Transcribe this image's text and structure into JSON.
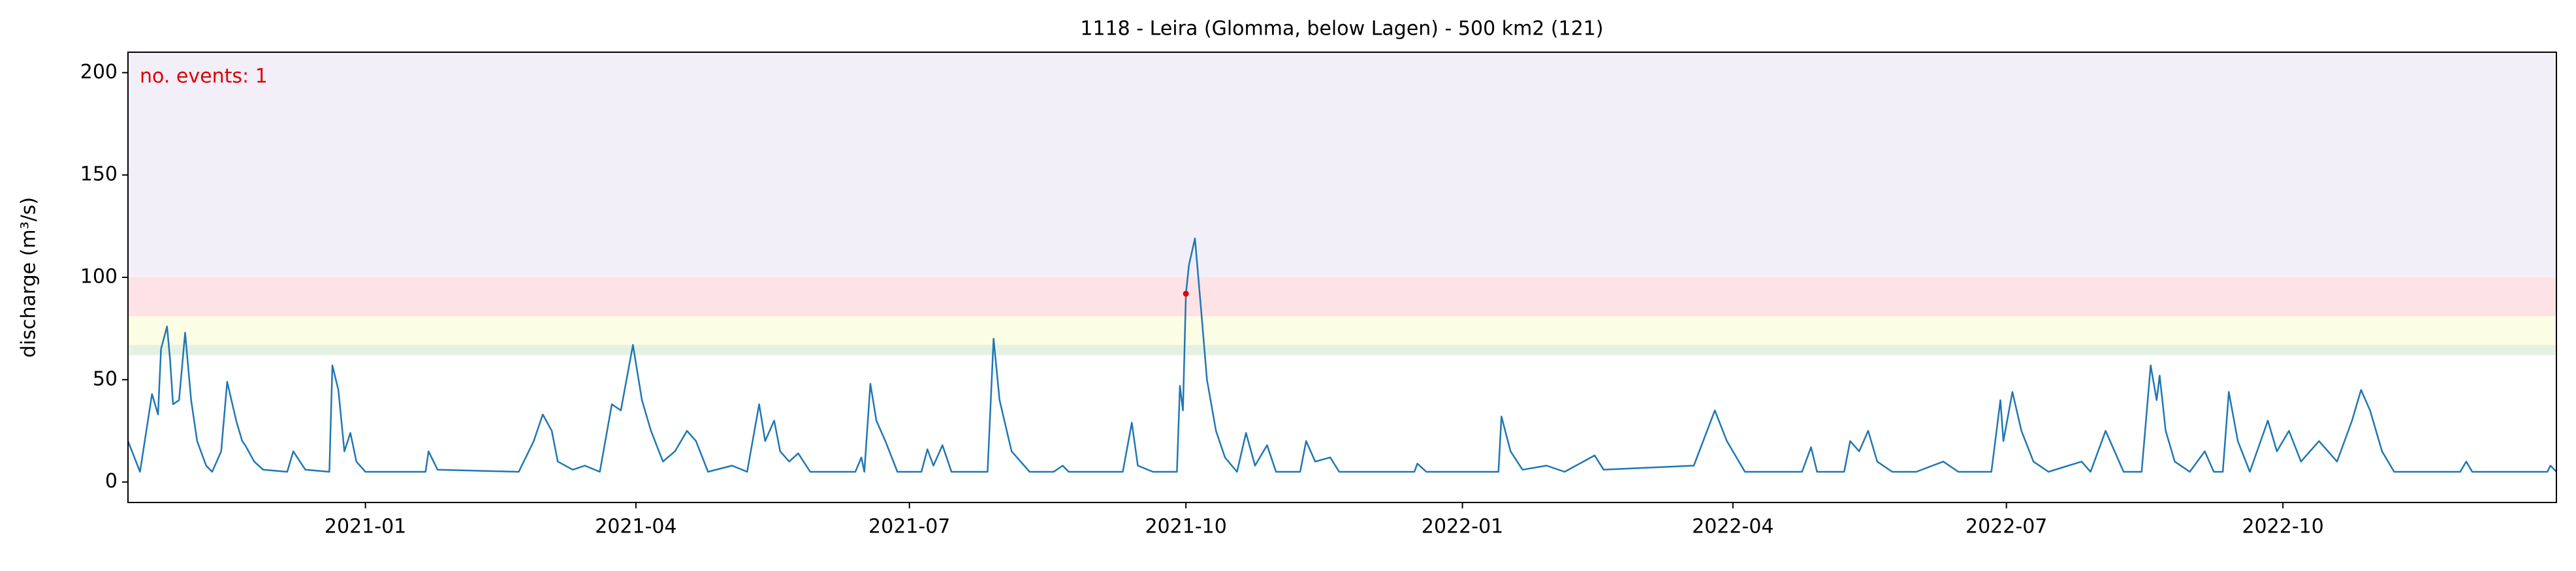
{
  "chart_data": {
    "type": "line",
    "title": "1118 - Leira (Glomma, below Lagen) - 500 km2 (121)",
    "ylabel": "discharge (m³/s)",
    "annotation": "no. events: 1",
    "annotation_color": "#e00000",
    "color": "#1f77b4",
    "x": [
      "2020-10-14",
      "2020-10-18",
      "2020-10-22",
      "2020-10-24",
      "2020-10-25",
      "2020-10-27",
      "2020-10-28",
      "2020-10-29",
      "2020-10-31",
      "2020-11-02",
      "2020-11-04",
      "2020-11-06",
      "2020-11-09",
      "2020-11-11",
      "2020-11-14",
      "2020-11-16",
      "2020-11-19",
      "2020-11-21",
      "2020-11-22",
      "2020-11-25",
      "2020-11-28",
      "2020-12-06",
      "2020-12-08",
      "2020-12-12",
      "2020-12-20",
      "2020-12-21",
      "2020-12-23",
      "2020-12-25",
      "2020-12-27",
      "2020-12-29",
      "2021-01-01",
      "2021-01-21",
      "2021-01-22",
      "2021-01-25",
      "2021-02-21",
      "2021-02-26",
      "2021-03-01",
      "2021-03-04",
      "2021-03-06",
      "2021-03-11",
      "2021-03-15",
      "2021-03-20",
      "2021-03-24",
      "2021-03-27",
      "2021-03-31",
      "2021-04-03",
      "2021-04-06",
      "2021-04-10",
      "2021-04-14",
      "2021-04-18",
      "2021-04-21",
      "2021-04-25",
      "2021-05-03",
      "2021-05-08",
      "2021-05-12",
      "2021-05-14",
      "2021-05-17",
      "2021-05-19",
      "2021-05-22",
      "2021-05-25",
      "2021-05-29",
      "2021-06-13",
      "2021-06-15",
      "2021-06-16",
      "2021-06-18",
      "2021-06-20",
      "2021-06-23",
      "2021-06-27",
      "2021-07-05",
      "2021-07-07",
      "2021-07-09",
      "2021-07-12",
      "2021-07-15",
      "2021-07-27",
      "2021-07-29",
      "2021-07-31",
      "2021-08-04",
      "2021-08-10",
      "2021-08-18",
      "2021-08-21",
      "2021-08-23",
      "2021-09-10",
      "2021-09-13",
      "2021-09-15",
      "2021-09-20",
      "2021-09-28",
      "2021-09-29",
      "2021-09-30",
      "2021-10-01",
      "2021-10-02",
      "2021-10-04",
      "2021-10-06",
      "2021-10-08",
      "2021-10-11",
      "2021-10-14",
      "2021-10-18",
      "2021-10-21",
      "2021-10-24",
      "2021-10-28",
      "2021-10-31",
      "2021-11-08",
      "2021-11-10",
      "2021-11-13",
      "2021-11-18",
      "2021-11-21",
      "2021-12-16",
      "2021-12-17",
      "2021-12-20",
      "2022-01-13",
      "2022-01-14",
      "2022-01-17",
      "2022-01-21",
      "2022-01-29",
      "2022-02-04",
      "2022-02-14",
      "2022-02-17",
      "2022-03-19",
      "2022-03-26",
      "2022-03-30",
      "2022-04-05",
      "2022-04-24",
      "2022-04-27",
      "2022-04-29",
      "2022-05-08",
      "2022-05-10",
      "2022-05-13",
      "2022-05-16",
      "2022-05-19",
      "2022-05-24",
      "2022-06-01",
      "2022-06-10",
      "2022-06-15",
      "2022-06-26",
      "2022-06-29",
      "2022-06-30",
      "2022-07-03",
      "2022-07-06",
      "2022-07-10",
      "2022-07-15",
      "2022-07-26",
      "2022-07-29",
      "2022-08-03",
      "2022-08-06",
      "2022-08-09",
      "2022-08-15",
      "2022-08-18",
      "2022-08-20",
      "2022-08-21",
      "2022-08-23",
      "2022-08-26",
      "2022-08-31",
      "2022-09-05",
      "2022-09-08",
      "2022-09-11",
      "2022-09-13",
      "2022-09-16",
      "2022-09-20",
      "2022-09-26",
      "2022-09-29",
      "2022-10-03",
      "2022-10-07",
      "2022-10-13",
      "2022-10-19",
      "2022-10-24",
      "2022-10-27",
      "2022-10-30",
      "2022-11-03",
      "2022-11-07",
      "2022-11-29",
      "2022-12-01",
      "2022-12-03",
      "2022-12-28",
      "2022-12-29",
      "2022-12-31"
    ],
    "values": [
      20,
      5,
      43,
      33,
      65,
      76,
      60,
      38,
      40,
      73,
      40,
      20,
      8,
      5,
      15,
      49,
      30,
      20,
      18,
      10,
      6,
      5,
      15,
      6,
      5,
      57,
      45,
      15,
      24,
      10,
      5,
      5,
      15,
      6,
      5,
      20,
      33,
      25,
      10,
      6,
      8,
      5,
      38,
      35,
      67,
      40,
      25,
      10,
      15,
      25,
      20,
      5,
      8,
      5,
      38,
      20,
      30,
      15,
      10,
      14,
      5,
      5,
      12,
      5,
      48,
      30,
      20,
      5,
      5,
      16,
      8,
      18,
      5,
      5,
      70,
      40,
      15,
      5,
      5,
      8,
      5,
      5,
      29,
      8,
      5,
      5,
      47,
      35,
      92,
      106,
      119,
      85,
      50,
      25,
      12,
      5,
      24,
      8,
      18,
      5,
      5,
      20,
      10,
      12,
      5,
      5,
      9,
      5,
      5,
      32,
      15,
      6,
      8,
      5,
      13,
      6,
      8,
      35,
      20,
      5,
      5,
      17,
      5,
      5,
      20,
      15,
      25,
      10,
      5,
      5,
      10,
      5,
      5,
      40,
      20,
      44,
      25,
      10,
      5,
      10,
      5,
      25,
      15,
      5,
      5,
      57,
      40,
      52,
      25,
      10,
      5,
      15,
      5,
      5,
      44,
      20,
      5,
      30,
      15,
      25,
      10,
      20,
      10,
      30,
      45,
      35,
      15,
      5,
      5,
      10,
      5,
      5,
      8,
      5
    ],
    "events": {
      "x": [
        "2021-10-01"
      ],
      "values": [
        92
      ],
      "color": "#e00000"
    },
    "bands": [
      {
        "from": 62,
        "to": 67,
        "color": "#e5f2e3"
      },
      {
        "from": 67,
        "to": 81,
        "color": "#fbfde4"
      },
      {
        "from": 81,
        "to": 100,
        "color": "#fde3e6"
      },
      {
        "from": 100,
        "to": 210,
        "color": "#f2eff9"
      }
    ],
    "xlim": [
      "2020-10-14",
      "2022-12-31"
    ],
    "xticks": [
      "2021-01",
      "2021-04",
      "2021-07",
      "2021-10",
      "2022-01",
      "2022-04",
      "2022-07",
      "2022-10"
    ],
    "ylim": [
      -10,
      210
    ],
    "yticks": [
      0,
      50,
      100,
      150,
      200
    ]
  }
}
